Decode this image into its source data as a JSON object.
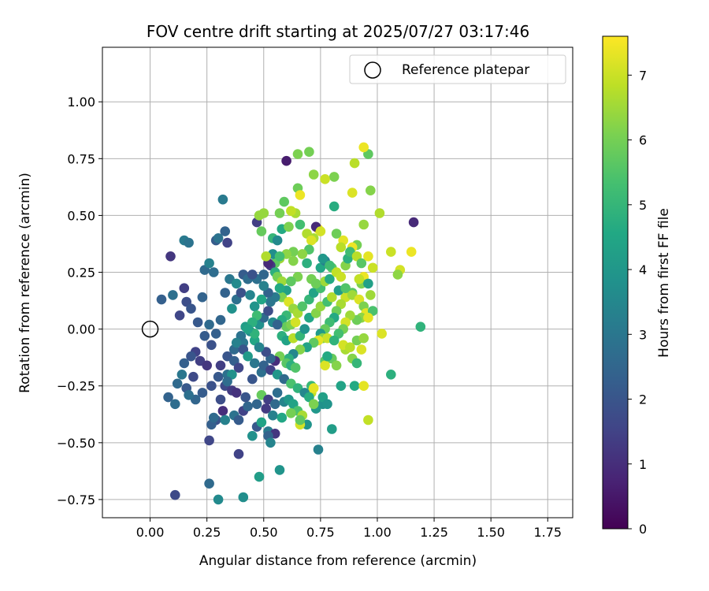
{
  "chart_data": {
    "type": "scatter",
    "title": "FOV centre drift starting at 2025/07/27 03:17:46",
    "xlabel": "Angular distance from reference (arcmin)",
    "ylabel": "Rotation from reference (arcmin)",
    "xlim": [
      -0.21,
      1.86
    ],
    "ylim": [
      -0.83,
      1.24
    ],
    "x_ticks": [
      0.0,
      0.25,
      0.5,
      0.75,
      1.0,
      1.25,
      1.5,
      1.75
    ],
    "x_tick_labels": [
      "0.00",
      "0.25",
      "0.50",
      "0.75",
      "1.00",
      "1.25",
      "1.50",
      "1.75"
    ],
    "y_ticks": [
      -0.75,
      -0.5,
      -0.25,
      0.0,
      0.25,
      0.5,
      0.75,
      1.0
    ],
    "y_tick_labels": [
      "−0.75",
      "−0.50",
      "−0.25",
      "0.00",
      "0.25",
      "0.50",
      "0.75",
      "1.00"
    ],
    "grid": true,
    "legend": {
      "placement": "upper-right",
      "entries": [
        "Reference platepar"
      ]
    },
    "reference_point": {
      "x": 0.0,
      "y": 0.0
    },
    "colorbar": {
      "label": "Hours from first FF file",
      "range": [
        0,
        7.6
      ],
      "ticks": [
        0,
        1,
        2,
        3,
        4,
        5,
        6,
        7
      ],
      "tick_labels": [
        "0",
        "1",
        "2",
        "3",
        "4",
        "5",
        "6",
        "7"
      ],
      "colormap": "viridis"
    },
    "points": [
      [
        0.09,
        0.32,
        1.2
      ],
      [
        0.13,
        0.06,
        1.6
      ],
      [
        0.15,
        0.18,
        1.4
      ],
      [
        0.16,
        0.12,
        1.8
      ],
      [
        0.18,
        0.09,
        2.0
      ],
      [
        0.21,
        0.03,
        2.1
      ],
      [
        0.23,
        0.14,
        2.4
      ],
      [
        0.26,
        0.02,
        2.6
      ],
      [
        0.24,
        -0.03,
        2.2
      ],
      [
        0.27,
        -0.07,
        1.9
      ],
      [
        0.29,
        -0.02,
        2.3
      ],
      [
        0.31,
        0.04,
        2.5
      ],
      [
        0.2,
        -0.1,
        1.5
      ],
      [
        0.18,
        -0.12,
        2.0
      ],
      [
        0.15,
        -0.15,
        2.3
      ],
      [
        0.12,
        -0.24,
        2.6
      ],
      [
        0.16,
        -0.26,
        2.1
      ],
      [
        0.19,
        -0.21,
        1.7
      ],
      [
        0.22,
        -0.14,
        1.4
      ],
      [
        0.25,
        -0.16,
        1.2
      ],
      [
        0.27,
        -0.25,
        1.9
      ],
      [
        0.23,
        -0.28,
        2.2
      ],
      [
        0.2,
        -0.31,
        2.5
      ],
      [
        0.17,
        -0.29,
        2.8
      ],
      [
        0.14,
        -0.2,
        3.0
      ],
      [
        0.08,
        -0.3,
        2.4
      ],
      [
        0.11,
        -0.33,
        2.7
      ],
      [
        0.05,
        0.13,
        2.3
      ],
      [
        0.1,
        0.15,
        2.8
      ],
      [
        0.15,
        0.39,
        3.1
      ],
      [
        0.17,
        0.38,
        2.9
      ],
      [
        0.24,
        0.26,
        2.6
      ],
      [
        0.26,
        0.29,
        3.3
      ],
      [
        0.28,
        0.25,
        2.7
      ],
      [
        0.29,
        0.39,
        2.2
      ],
      [
        0.3,
        0.4,
        2.9
      ],
      [
        0.33,
        0.43,
        2.4
      ],
      [
        0.32,
        0.57,
        3.1
      ],
      [
        0.34,
        0.38,
        1.5
      ],
      [
        0.33,
        0.16,
        2.4
      ],
      [
        0.35,
        0.22,
        3.0
      ],
      [
        0.38,
        0.2,
        3.6
      ],
      [
        0.36,
        0.09,
        3.8
      ],
      [
        0.38,
        0.13,
        2.8
      ],
      [
        0.4,
        0.16,
        1.9
      ],
      [
        0.41,
        0.24,
        2.2
      ],
      [
        0.43,
        0.22,
        2.7
      ],
      [
        0.44,
        0.15,
        3.4
      ],
      [
        0.46,
        0.1,
        3.9
      ],
      [
        0.42,
        0.01,
        4.2
      ],
      [
        0.44,
        -0.01,
        3.6
      ],
      [
        0.46,
        -0.05,
        4.5
      ],
      [
        0.41,
        -0.06,
        3.0
      ],
      [
        0.37,
        -0.09,
        2.6
      ],
      [
        0.34,
        -0.12,
        2.0
      ],
      [
        0.31,
        -0.16,
        1.4
      ],
      [
        0.3,
        -0.21,
        2.1
      ],
      [
        0.34,
        -0.2,
        2.8
      ],
      [
        0.33,
        -0.25,
        1.7
      ],
      [
        0.36,
        -0.27,
        1.3
      ],
      [
        0.32,
        -0.36,
        1.0
      ],
      [
        0.29,
        -0.4,
        1.9
      ],
      [
        0.27,
        -0.42,
        2.3
      ],
      [
        0.26,
        -0.49,
        1.6
      ],
      [
        0.28,
        -0.39,
        2.6
      ],
      [
        0.31,
        -0.31,
        1.8
      ],
      [
        0.33,
        -0.4,
        3.3
      ],
      [
        0.37,
        -0.38,
        2.9
      ],
      [
        0.39,
        -0.4,
        2.2
      ],
      [
        0.41,
        -0.36,
        1.5
      ],
      [
        0.43,
        -0.34,
        2.5
      ],
      [
        0.47,
        -0.43,
        2.1
      ],
      [
        0.45,
        -0.47,
        3.8
      ],
      [
        0.49,
        -0.41,
        4.4
      ],
      [
        0.52,
        -0.45,
        3.1
      ],
      [
        0.55,
        -0.46,
        1.2
      ],
      [
        0.52,
        -0.47,
        2.4
      ],
      [
        0.53,
        -0.5,
        3.4
      ],
      [
        0.48,
        -0.65,
        4.2
      ],
      [
        0.57,
        -0.62,
        3.9
      ],
      [
        0.41,
        -0.74,
        3.7
      ],
      [
        0.3,
        -0.75,
        3.6
      ],
      [
        0.26,
        -0.68,
        2.6
      ],
      [
        0.11,
        -0.73,
        1.7
      ],
      [
        0.39,
        -0.55,
        1.5
      ],
      [
        0.45,
        -0.22,
        2.0
      ],
      [
        0.49,
        -0.19,
        2.8
      ],
      [
        0.49,
        -0.29,
        5.8
      ],
      [
        0.52,
        -0.31,
        1.4
      ],
      [
        0.55,
        -0.33,
        2.6
      ],
      [
        0.59,
        -0.32,
        3.4
      ],
      [
        0.61,
        -0.31,
        4.0
      ],
      [
        0.63,
        -0.33,
        4.4
      ],
      [
        0.65,
        -0.36,
        5.4
      ],
      [
        0.67,
        -0.38,
        6.6
      ],
      [
        0.69,
        -0.42,
        3.9
      ],
      [
        0.66,
        -0.42,
        7.1
      ],
      [
        0.73,
        -0.35,
        4.0
      ],
      [
        0.76,
        -0.33,
        3.8
      ],
      [
        0.74,
        -0.53,
        3.3
      ],
      [
        0.8,
        -0.44,
        4.2
      ],
      [
        0.71,
        -0.25,
        5.1
      ],
      [
        0.71,
        -0.28,
        6.9
      ],
      [
        0.72,
        -0.26,
        7.3
      ],
      [
        0.8,
        -0.13,
        5.8
      ],
      [
        0.82,
        -0.16,
        6.2
      ],
      [
        0.77,
        -0.14,
        5.6
      ],
      [
        0.77,
        -0.16,
        7.2
      ],
      [
        0.78,
        -0.12,
        4.6
      ],
      [
        0.86,
        -0.09,
        6.6
      ],
      [
        0.89,
        -0.13,
        6.2
      ],
      [
        0.91,
        -0.15,
        5.0
      ],
      [
        0.93,
        -0.09,
        7.2
      ],
      [
        0.84,
        -0.25,
        4.4
      ],
      [
        0.9,
        -0.25,
        4.6
      ],
      [
        0.94,
        -0.25,
        7.3
      ],
      [
        0.96,
        -0.4,
        6.9
      ],
      [
        1.06,
        -0.2,
        4.8
      ],
      [
        1.02,
        -0.02,
        7.2
      ],
      [
        1.19,
        0.01,
        4.9
      ],
      [
        1.15,
        0.34,
        7.4
      ],
      [
        1.1,
        0.26,
        7.1
      ],
      [
        1.09,
        0.24,
        6.3
      ],
      [
        1.06,
        0.34,
        7.0
      ],
      [
        1.16,
        0.47,
        0.9
      ],
      [
        1.01,
        0.51,
        6.7
      ],
      [
        0.97,
        0.61,
        6.2
      ],
      [
        0.96,
        0.77,
        5.7
      ],
      [
        0.94,
        0.8,
        7.4
      ],
      [
        0.9,
        0.73,
        6.8
      ],
      [
        0.89,
        0.6,
        7.2
      ],
      [
        0.94,
        0.46,
        6.4
      ],
      [
        0.91,
        0.37,
        6.0
      ],
      [
        0.89,
        0.36,
        7.4
      ],
      [
        0.85,
        0.39,
        7.3
      ],
      [
        0.84,
        0.36,
        6.8
      ],
      [
        0.82,
        0.42,
        5.9
      ],
      [
        0.81,
        0.54,
        4.7
      ],
      [
        0.81,
        0.67,
        6.1
      ],
      [
        0.77,
        0.66,
        7.0
      ],
      [
        0.72,
        0.68,
        6.3
      ],
      [
        0.7,
        0.78,
        6.0
      ],
      [
        0.65,
        0.77,
        6.1
      ],
      [
        0.6,
        0.74,
        0.6
      ],
      [
        0.65,
        0.62,
        5.9
      ],
      [
        0.66,
        0.59,
        7.4
      ],
      [
        0.64,
        0.51,
        6.6
      ],
      [
        0.62,
        0.52,
        6.9
      ],
      [
        0.59,
        0.56,
        5.7
      ],
      [
        0.57,
        0.51,
        6.0
      ],
      [
        0.5,
        0.51,
        6.4
      ],
      [
        0.47,
        0.47,
        1.4
      ],
      [
        0.48,
        0.5,
        6.4
      ],
      [
        0.49,
        0.43,
        5.8
      ],
      [
        0.54,
        0.4,
        5.0
      ],
      [
        0.56,
        0.39,
        3.6
      ],
      [
        0.58,
        0.44,
        4.6
      ],
      [
        0.61,
        0.45,
        6.1
      ],
      [
        0.66,
        0.46,
        5.3
      ],
      [
        0.69,
        0.42,
        6.7
      ],
      [
        0.72,
        0.4,
        6.6
      ],
      [
        0.74,
        0.44,
        7.6
      ],
      [
        0.73,
        0.45,
        0.9
      ],
      [
        0.75,
        0.43,
        7.1
      ],
      [
        0.71,
        0.39,
        7.2
      ],
      [
        0.7,
        0.35,
        5.5
      ],
      [
        0.67,
        0.33,
        6.3
      ],
      [
        0.63,
        0.34,
        6.0
      ],
      [
        0.6,
        0.33,
        6.3
      ],
      [
        0.57,
        0.31,
        6.5
      ],
      [
        0.55,
        0.29,
        5.7
      ],
      [
        0.53,
        0.28,
        1.3
      ],
      [
        0.55,
        0.25,
        4.8
      ],
      [
        0.56,
        0.23,
        6.0
      ],
      [
        0.58,
        0.21,
        6.5
      ],
      [
        0.6,
        0.17,
        4.3
      ],
      [
        0.58,
        0.14,
        6.1
      ],
      [
        0.61,
        0.12,
        7.2
      ],
      [
        0.63,
        0.09,
        6.4
      ],
      [
        0.6,
        0.06,
        5.1
      ],
      [
        0.58,
        0.04,
        4.7
      ],
      [
        0.6,
        0.01,
        5.8
      ],
      [
        0.62,
        0.02,
        6.1
      ],
      [
        0.64,
        0.03,
        7.1
      ],
      [
        0.65,
        0.07,
        6.6
      ],
      [
        0.67,
        0.1,
        5.5
      ],
      [
        0.7,
        0.13,
        5.0
      ],
      [
        0.72,
        0.16,
        4.4
      ],
      [
        0.75,
        0.18,
        5.3
      ],
      [
        0.77,
        0.21,
        6.5
      ],
      [
        0.79,
        0.22,
        4.6
      ],
      [
        0.8,
        0.27,
        5.6
      ],
      [
        0.82,
        0.25,
        6.9
      ],
      [
        0.84,
        0.23,
        7.0
      ],
      [
        0.86,
        0.28,
        6.2
      ],
      [
        0.87,
        0.31,
        4.8
      ],
      [
        0.88,
        0.34,
        5.2
      ],
      [
        0.91,
        0.32,
        6.8
      ],
      [
        0.93,
        0.29,
        5.6
      ],
      [
        0.96,
        0.32,
        7.3
      ],
      [
        0.98,
        0.27,
        7.0
      ],
      [
        0.94,
        0.23,
        7.4
      ],
      [
        0.93,
        0.2,
        6.1
      ],
      [
        0.89,
        0.16,
        5.6
      ],
      [
        0.86,
        0.14,
        7.0
      ],
      [
        0.84,
        0.11,
        6.6
      ],
      [
        0.82,
        0.08,
        5.9
      ],
      [
        0.81,
        0.05,
        4.6
      ],
      [
        0.79,
        0.03,
        5.2
      ],
      [
        0.77,
        0.0,
        5.8
      ],
      [
        0.75,
        -0.02,
        4.1
      ],
      [
        0.76,
        -0.04,
        6.2
      ],
      [
        0.78,
        -0.04,
        7.0
      ],
      [
        0.74,
        -0.05,
        7.3
      ],
      [
        0.72,
        -0.06,
        5.7
      ],
      [
        0.69,
        -0.08,
        4.4
      ],
      [
        0.66,
        -0.09,
        6.2
      ],
      [
        0.63,
        -0.11,
        3.5
      ],
      [
        0.61,
        -0.13,
        4.8
      ],
      [
        0.6,
        -0.15,
        5.6
      ],
      [
        0.62,
        -0.16,
        4.8
      ],
      [
        0.64,
        -0.17,
        5.5
      ],
      [
        0.57,
        -0.12,
        6.0
      ],
      [
        0.55,
        -0.14,
        1.0
      ],
      [
        0.53,
        -0.13,
        2.5
      ],
      [
        0.51,
        -0.1,
        1.8
      ],
      [
        0.48,
        -0.08,
        3.4
      ],
      [
        0.46,
        -0.02,
        4.9
      ],
      [
        0.48,
        0.02,
        3.8
      ],
      [
        0.5,
        0.05,
        2.6
      ],
      [
        0.52,
        0.08,
        1.8
      ],
      [
        0.54,
        0.03,
        3.6
      ],
      [
        0.56,
        0.02,
        2.4
      ],
      [
        0.58,
        -0.03,
        4.8
      ],
      [
        0.6,
        -0.05,
        4.4
      ],
      [
        0.63,
        -0.04,
        6.8
      ],
      [
        0.66,
        -0.03,
        5.0
      ],
      [
        0.68,
        0.0,
        3.9
      ],
      [
        0.7,
        0.05,
        4.5
      ],
      [
        0.73,
        0.07,
        6.2
      ],
      [
        0.75,
        0.1,
        6.4
      ],
      [
        0.78,
        0.12,
        5.3
      ],
      [
        0.8,
        0.14,
        6.7
      ],
      [
        0.83,
        0.17,
        4.2
      ],
      [
        0.86,
        0.18,
        5.5
      ],
      [
        0.89,
        0.15,
        6.5
      ],
      [
        0.92,
        0.13,
        7.2
      ],
      [
        0.94,
        0.1,
        6.1
      ],
      [
        0.95,
        0.07,
        7.3
      ],
      [
        0.93,
        0.05,
        6.3
      ],
      [
        0.91,
        0.04,
        5.9
      ],
      [
        0.88,
        0.06,
        6.5
      ],
      [
        0.86,
        0.03,
        7.1
      ],
      [
        0.85,
        0.0,
        6.0
      ],
      [
        0.83,
        -0.02,
        5.3
      ],
      [
        0.81,
        -0.05,
        4.9
      ],
      [
        0.85,
        -0.07,
        7.1
      ],
      [
        0.88,
        -0.08,
        6.8
      ],
      [
        0.91,
        -0.05,
        6.0
      ],
      [
        0.94,
        -0.04,
        6.4
      ],
      [
        0.92,
        0.22,
        6.9
      ],
      [
        0.96,
        0.2,
        4.3
      ],
      [
        0.97,
        0.15,
        6.5
      ],
      [
        0.98,
        0.08,
        5.4
      ],
      [
        0.96,
        0.05,
        7.3
      ],
      [
        0.69,
        0.29,
        4.8
      ],
      [
        0.71,
        0.22,
        6.0
      ],
      [
        0.73,
        0.2,
        5.9
      ],
      [
        0.75,
        0.27,
        4.5
      ],
      [
        0.77,
        0.3,
        3.3
      ],
      [
        0.79,
        0.28,
        5.2
      ],
      [
        0.76,
        0.31,
        4.0
      ],
      [
        0.65,
        0.23,
        6.1
      ],
      [
        0.62,
        0.21,
        5.7
      ],
      [
        0.57,
        0.18,
        4.6
      ],
      [
        0.55,
        0.14,
        3.1
      ],
      [
        0.52,
        0.16,
        2.4
      ],
      [
        0.5,
        0.19,
        3.3
      ],
      [
        0.47,
        0.22,
        2.8
      ],
      [
        0.45,
        0.24,
        1.9
      ],
      [
        0.5,
        0.24,
        2.5
      ],
      [
        0.52,
        0.29,
        0.9
      ],
      [
        0.54,
        0.33,
        3.7
      ],
      [
        0.57,
        0.32,
        5.3
      ],
      [
        0.63,
        0.3,
        6.2
      ],
      [
        0.51,
        0.32,
        6.7
      ],
      [
        0.53,
        0.12,
        3.0
      ],
      [
        0.49,
        0.13,
        4.5
      ],
      [
        0.47,
        0.06,
        5.2
      ],
      [
        0.45,
        0.03,
        4.8
      ],
      [
        0.43,
        0.0,
        4.4
      ],
      [
        0.4,
        -0.03,
        2.9
      ],
      [
        0.38,
        -0.06,
        3.3
      ],
      [
        0.41,
        -0.09,
        2.0
      ],
      [
        0.43,
        -0.12,
        4.1
      ],
      [
        0.46,
        -0.15,
        3.0
      ],
      [
        0.5,
        -0.16,
        2.4
      ],
      [
        0.53,
        -0.18,
        1.5
      ],
      [
        0.56,
        -0.2,
        4.0
      ],
      [
        0.59,
        -0.22,
        2.6
      ],
      [
        0.62,
        -0.24,
        5.4
      ],
      [
        0.65,
        -0.26,
        4.9
      ],
      [
        0.68,
        -0.28,
        3.5
      ],
      [
        0.7,
        -0.3,
        4.7
      ],
      [
        0.72,
        -0.33,
        6.1
      ],
      [
        0.76,
        -0.3,
        4.3
      ],
      [
        0.78,
        -0.33,
        3.9
      ],
      [
        0.37,
        -0.14,
        2.3
      ],
      [
        0.39,
        -0.17,
        1.6
      ],
      [
        0.36,
        -0.2,
        3.8
      ],
      [
        0.34,
        -0.23,
        2.7
      ],
      [
        0.38,
        -0.28,
        1.1
      ],
      [
        0.42,
        -0.3,
        2.0
      ],
      [
        0.47,
        -0.33,
        2.5
      ],
      [
        0.51,
        -0.35,
        1.3
      ],
      [
        0.54,
        -0.38,
        3.3
      ],
      [
        0.58,
        -0.39,
        4.5
      ],
      [
        0.62,
        -0.37,
        6.0
      ],
      [
        0.66,
        -0.4,
        5.7
      ],
      [
        0.56,
        -0.28,
        2.7
      ]
    ]
  }
}
